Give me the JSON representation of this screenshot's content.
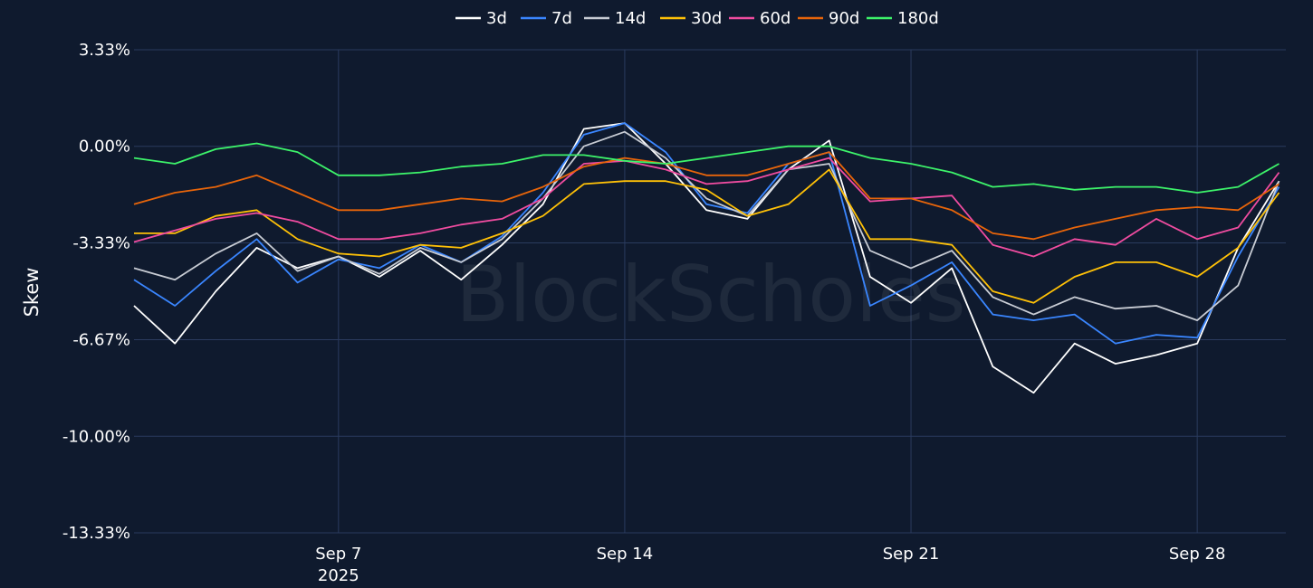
{
  "watermark": "BlockScholes",
  "chart_data": {
    "type": "line",
    "xlabel": "",
    "ylabel": "Skew",
    "ylim": [
      -13.33,
      3.33
    ],
    "xlim": [
      "2025-09-02",
      "2025-09-30T04:00"
    ],
    "yticks": [
      {
        "value": 3.33,
        "label": "3.33%"
      },
      {
        "value": 0,
        "label": "0.00%"
      },
      {
        "value": -3.33,
        "label": "-3.33%"
      },
      {
        "value": -6.67,
        "label": "-6.67%"
      },
      {
        "value": -10,
        "label": "-10.00%"
      },
      {
        "value": -13.33,
        "label": "-13.33%"
      }
    ],
    "xticks": [
      {
        "date": "2025-09-07",
        "label": "Sep 7",
        "sublabel": "2025"
      },
      {
        "date": "2025-09-14",
        "label": "Sep 14",
        "sublabel": ""
      },
      {
        "date": "2025-09-21",
        "label": "Sep 21",
        "sublabel": ""
      },
      {
        "date": "2025-09-28",
        "label": "Sep 28",
        "sublabel": ""
      }
    ],
    "grid": true,
    "legend_position": "top-center",
    "series": [
      {
        "name": "3d",
        "color": "#ffffff",
        "x": [
          "2025-09-02",
          "2025-09-03",
          "2025-09-04",
          "2025-09-05",
          "2025-09-06",
          "2025-09-07",
          "2025-09-08",
          "2025-09-09",
          "2025-09-10",
          "2025-09-11",
          "2025-09-12",
          "2025-09-13",
          "2025-09-14",
          "2025-09-15",
          "2025-09-16",
          "2025-09-17",
          "2025-09-18",
          "2025-09-19",
          "2025-09-20",
          "2025-09-21",
          "2025-09-22",
          "2025-09-23",
          "2025-09-24",
          "2025-09-25",
          "2025-09-26",
          "2025-09-27",
          "2025-09-28",
          "2025-09-29",
          "2025-09-30"
        ],
        "y": [
          -5.5,
          -6.8,
          -5.0,
          -3.5,
          -4.2,
          -3.8,
          -4.5,
          -3.6,
          -4.6,
          -3.4,
          -2.0,
          0.6,
          0.8,
          -0.6,
          -2.2,
          -2.5,
          -0.8,
          0.2,
          -4.5,
          -5.4,
          -4.2,
          -7.6,
          -8.5,
          -6.8,
          -7.5,
          -7.2,
          -6.8,
          -3.5,
          -1.2
        ]
      },
      {
        "name": "7d",
        "color": "#3a86ff",
        "x": [
          "2025-09-02",
          "2025-09-03",
          "2025-09-04",
          "2025-09-05",
          "2025-09-06",
          "2025-09-07",
          "2025-09-08",
          "2025-09-09",
          "2025-09-10",
          "2025-09-11",
          "2025-09-12",
          "2025-09-13",
          "2025-09-14",
          "2025-09-15",
          "2025-09-16",
          "2025-09-17",
          "2025-09-18",
          "2025-09-19",
          "2025-09-20",
          "2025-09-21",
          "2025-09-22",
          "2025-09-23",
          "2025-09-24",
          "2025-09-25",
          "2025-09-26",
          "2025-09-27",
          "2025-09-28",
          "2025-09-29",
          "2025-09-30"
        ],
        "y": [
          -4.6,
          -5.5,
          -4.3,
          -3.2,
          -4.7,
          -3.9,
          -4.2,
          -3.4,
          -4.0,
          -3.1,
          -1.6,
          0.4,
          0.8,
          -0.2,
          -2.0,
          -2.3,
          -0.6,
          -0.2,
          -5.5,
          -4.8,
          -4.0,
          -5.8,
          -6.0,
          -5.8,
          -6.8,
          -6.5,
          -6.6,
          -3.8,
          -1.4
        ]
      },
      {
        "name": "14d",
        "color": "#c8ccd4",
        "x": [
          "2025-09-02",
          "2025-09-03",
          "2025-09-04",
          "2025-09-05",
          "2025-09-06",
          "2025-09-07",
          "2025-09-08",
          "2025-09-09",
          "2025-09-10",
          "2025-09-11",
          "2025-09-12",
          "2025-09-13",
          "2025-09-14",
          "2025-09-15",
          "2025-09-16",
          "2025-09-17",
          "2025-09-18",
          "2025-09-19",
          "2025-09-20",
          "2025-09-21",
          "2025-09-22",
          "2025-09-23",
          "2025-09-24",
          "2025-09-25",
          "2025-09-26",
          "2025-09-27",
          "2025-09-28",
          "2025-09-29",
          "2025-09-30"
        ],
        "y": [
          -4.2,
          -4.6,
          -3.7,
          -3.0,
          -4.3,
          -3.8,
          -4.4,
          -3.5,
          -4.0,
          -3.2,
          -1.8,
          0.0,
          0.5,
          -0.4,
          -1.8,
          -2.4,
          -0.8,
          -0.6,
          -3.6,
          -4.2,
          -3.6,
          -5.2,
          -5.8,
          -5.2,
          -5.6,
          -5.5,
          -6.0,
          -4.8,
          -1.2
        ]
      },
      {
        "name": "30d",
        "color": "#ffc107",
        "x": [
          "2025-09-02",
          "2025-09-03",
          "2025-09-04",
          "2025-09-05",
          "2025-09-06",
          "2025-09-07",
          "2025-09-08",
          "2025-09-09",
          "2025-09-10",
          "2025-09-11",
          "2025-09-12",
          "2025-09-13",
          "2025-09-14",
          "2025-09-15",
          "2025-09-16",
          "2025-09-17",
          "2025-09-18",
          "2025-09-19",
          "2025-09-20",
          "2025-09-21",
          "2025-09-22",
          "2025-09-23",
          "2025-09-24",
          "2025-09-25",
          "2025-09-26",
          "2025-09-27",
          "2025-09-28",
          "2025-09-29",
          "2025-09-30"
        ],
        "y": [
          -3.0,
          -3.0,
          -2.4,
          -2.2,
          -3.2,
          -3.7,
          -3.8,
          -3.4,
          -3.5,
          -3.0,
          -2.4,
          -1.3,
          -1.2,
          -1.2,
          -1.5,
          -2.4,
          -2.0,
          -0.8,
          -3.2,
          -3.2,
          -3.4,
          -5.0,
          -5.4,
          -4.5,
          -4.0,
          -4.0,
          -4.5,
          -3.5,
          -1.6
        ]
      },
      {
        "name": "60d",
        "color": "#f04ca0",
        "x": [
          "2025-09-02",
          "2025-09-03",
          "2025-09-04",
          "2025-09-05",
          "2025-09-06",
          "2025-09-07",
          "2025-09-08",
          "2025-09-09",
          "2025-09-10",
          "2025-09-11",
          "2025-09-12",
          "2025-09-13",
          "2025-09-14",
          "2025-09-15",
          "2025-09-16",
          "2025-09-17",
          "2025-09-18",
          "2025-09-19",
          "2025-09-20",
          "2025-09-21",
          "2025-09-22",
          "2025-09-23",
          "2025-09-24",
          "2025-09-25",
          "2025-09-26",
          "2025-09-27",
          "2025-09-28",
          "2025-09-29",
          "2025-09-30"
        ],
        "y": [
          -3.3,
          -2.9,
          -2.5,
          -2.3,
          -2.6,
          -3.2,
          -3.2,
          -3.0,
          -2.7,
          -2.5,
          -1.8,
          -0.6,
          -0.5,
          -0.8,
          -1.3,
          -1.2,
          -0.8,
          -0.4,
          -1.9,
          -1.8,
          -1.7,
          -3.4,
          -3.8,
          -3.2,
          -3.4,
          -2.5,
          -3.2,
          -2.8,
          -0.9
        ]
      },
      {
        "name": "90d",
        "color": "#e8650a",
        "x": [
          "2025-09-02",
          "2025-09-03",
          "2025-09-04",
          "2025-09-05",
          "2025-09-06",
          "2025-09-07",
          "2025-09-08",
          "2025-09-09",
          "2025-09-10",
          "2025-09-11",
          "2025-09-12",
          "2025-09-13",
          "2025-09-14",
          "2025-09-15",
          "2025-09-16",
          "2025-09-17",
          "2025-09-18",
          "2025-09-19",
          "2025-09-20",
          "2025-09-21",
          "2025-09-22",
          "2025-09-23",
          "2025-09-24",
          "2025-09-25",
          "2025-09-26",
          "2025-09-27",
          "2025-09-28",
          "2025-09-29",
          "2025-09-30"
        ],
        "y": [
          -2.0,
          -1.6,
          -1.4,
          -1.0,
          -1.6,
          -2.2,
          -2.2,
          -2.0,
          -1.8,
          -1.9,
          -1.4,
          -0.7,
          -0.4,
          -0.6,
          -1.0,
          -1.0,
          -0.6,
          -0.2,
          -1.8,
          -1.8,
          -2.2,
          -3.0,
          -3.2,
          -2.8,
          -2.5,
          -2.2,
          -2.1,
          -2.2,
          -1.3
        ]
      },
      {
        "name": "180d",
        "color": "#3df36a",
        "x": [
          "2025-09-02",
          "2025-09-03",
          "2025-09-04",
          "2025-09-05",
          "2025-09-06",
          "2025-09-07",
          "2025-09-08",
          "2025-09-09",
          "2025-09-10",
          "2025-09-11",
          "2025-09-12",
          "2025-09-13",
          "2025-09-14",
          "2025-09-15",
          "2025-09-16",
          "2025-09-17",
          "2025-09-18",
          "2025-09-19",
          "2025-09-20",
          "2025-09-21",
          "2025-09-22",
          "2025-09-23",
          "2025-09-24",
          "2025-09-25",
          "2025-09-26",
          "2025-09-27",
          "2025-09-28",
          "2025-09-29",
          "2025-09-30"
        ],
        "y": [
          -0.4,
          -0.6,
          -0.1,
          0.1,
          -0.2,
          -1.0,
          -1.0,
          -0.9,
          -0.7,
          -0.6,
          -0.3,
          -0.3,
          -0.5,
          -0.6,
          -0.4,
          -0.2,
          0.0,
          0.0,
          -0.4,
          -0.6,
          -0.9,
          -1.4,
          -1.3,
          -1.5,
          -1.4,
          -1.4,
          -1.6,
          -1.4,
          -0.6
        ]
      }
    ]
  }
}
